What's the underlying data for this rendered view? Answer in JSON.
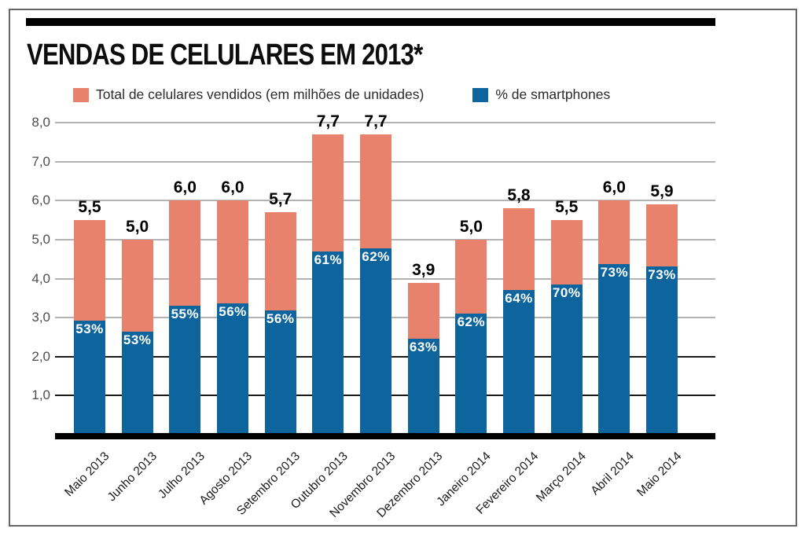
{
  "title": "VENDAS DE CELULARES EM 2013*",
  "legend": [
    {
      "label": "Total de celulares vendidos (em milhões de unidades)",
      "color": "#E9826C"
    },
    {
      "label": "% de smartphones",
      "color": "#0E659D"
    }
  ],
  "colors": {
    "total_bar": "#E9826C",
    "smartphone_bar": "#0E659D",
    "grid_light": "#b3b3b3",
    "grid_dark": "#1a1a1a",
    "axis_line": "#000000"
  },
  "chart_data": {
    "type": "bar",
    "subtype": "overlaid-stacked",
    "title": "VENDAS DE CELULARES EM 2013*",
    "categories": [
      "Maio 2013",
      "Junho 2013",
      "Julho 2013",
      "Agosto 2013",
      "Setembro 2013",
      "Outubro 2013",
      "Novembro 2013",
      "Dezembro 2013",
      "Janeiro 2014",
      "Fevereiro 2014",
      "Março 2014",
      "Abril 2014",
      "Maio 2014"
    ],
    "series": [
      {
        "name": "Total de celulares vendidos (em milhões de unidades)",
        "values": [
          5.5,
          5.0,
          6.0,
          6.0,
          5.7,
          7.7,
          7.7,
          3.9,
          5.0,
          5.8,
          5.5,
          6.0,
          5.9
        ],
        "labels": [
          "5,5",
          "5,0",
          "6,0",
          "6,0",
          "5,7",
          "7,7",
          "7,7",
          "3,9",
          "5,0",
          "5,8",
          "5,5",
          "6,0",
          "5,9"
        ]
      },
      {
        "name": "% de smartphones",
        "values": [
          53,
          53,
          55,
          56,
          56,
          61,
          62,
          63,
          62,
          64,
          70,
          73,
          73
        ],
        "labels": [
          "53%",
          "53%",
          "55%",
          "56%",
          "56%",
          "61%",
          "62%",
          "63%",
          "62%",
          "64%",
          "70%",
          "73%",
          "73%"
        ]
      }
    ],
    "ylabel": "",
    "xlabel": "",
    "ylim": [
      0,
      8
    ],
    "y_ticks": [
      {
        "value": 1,
        "label": "1,0"
      },
      {
        "value": 2,
        "label": "2,0"
      },
      {
        "value": 3,
        "label": "3,0"
      },
      {
        "value": 4,
        "label": "4,0"
      },
      {
        "value": 5,
        "label": "5,0"
      },
      {
        "value": 6,
        "label": "6,0"
      },
      {
        "value": 7,
        "label": "7,0"
      },
      {
        "value": 8,
        "label": "8,0"
      }
    ],
    "grid": true,
    "legend_position": "top",
    "note": "smartphone bar height equals total value multiplied by smartphone percentage"
  }
}
